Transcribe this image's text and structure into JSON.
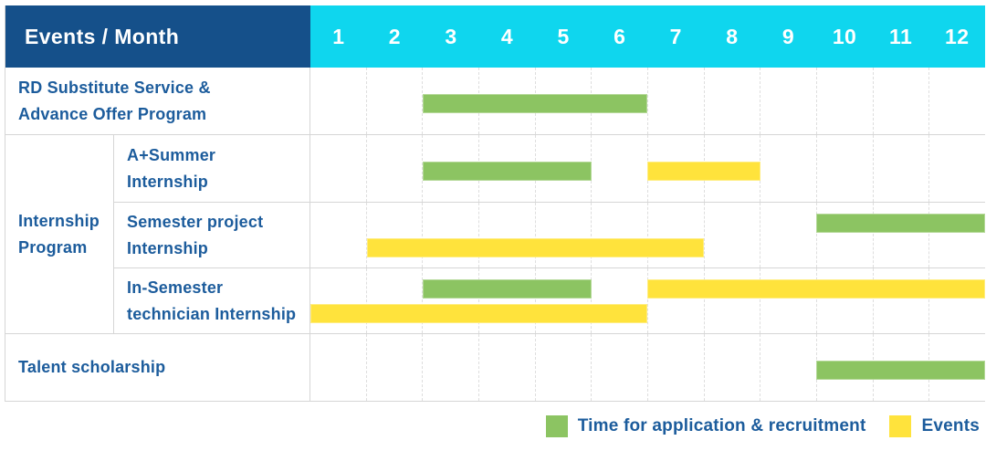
{
  "colors": {
    "navy": "#15508a",
    "cyan": "#0fd6ee",
    "green": "#8cc462",
    "yellow": "#ffe33c",
    "text": "#1c5c9c",
    "grid": "#d6d6d6"
  },
  "header": {
    "label": "Events / Month",
    "months": [
      "1",
      "2",
      "3",
      "4",
      "5",
      "6",
      "7",
      "8",
      "9",
      "10",
      "11",
      "12"
    ]
  },
  "group_label": {
    "lines": [
      "Internship",
      "Program"
    ]
  },
  "rows": [
    {
      "lines": [
        "RD Substitute Service &",
        "Advance Offer Program"
      ],
      "lanes": [
        [
          {
            "c": "green",
            "s": 3,
            "e": 6
          }
        ]
      ]
    },
    {
      "lines": [
        "A+Summer",
        "Internship"
      ],
      "lanes": [
        [
          {
            "c": "green",
            "s": 3,
            "e": 5
          },
          {
            "c": "yellow",
            "s": 7,
            "e": 8
          }
        ]
      ]
    },
    {
      "lines": [
        "Semester project",
        "Internship"
      ],
      "lanes": [
        [
          {
            "c": "green",
            "s": 10,
            "e": 12
          }
        ],
        [
          {
            "c": "yellow",
            "s": 2,
            "e": 7
          }
        ]
      ]
    },
    {
      "lines": [
        "In-Semester",
        "technician Internship"
      ],
      "lanes": [
        [
          {
            "c": "green",
            "s": 3,
            "e": 5
          },
          {
            "c": "yellow",
            "s": 7,
            "e": 12
          }
        ],
        [
          {
            "c": "yellow",
            "s": 1,
            "e": 6
          }
        ]
      ]
    },
    {
      "lines": [
        "Talent scholarship"
      ],
      "lanes": [
        [
          {
            "c": "green",
            "s": 10,
            "e": 12
          }
        ]
      ]
    }
  ],
  "legend": [
    {
      "label": "Time for application & recruitment",
      "color": "green"
    },
    {
      "label": "Events",
      "color": "yellow"
    }
  ],
  "chart_data": {
    "type": "bar",
    "variant": "gantt",
    "title": "Events / Month",
    "x_axis": {
      "label": "Month",
      "ticks": [
        1,
        2,
        3,
        4,
        5,
        6,
        7,
        8,
        9,
        10,
        11,
        12
      ],
      "range": [
        1,
        12
      ]
    },
    "legend_entries": [
      {
        "name": "Time for application & recruitment",
        "color": "#8cc462"
      },
      {
        "name": "Events",
        "color": "#ffe33c"
      }
    ],
    "tasks": [
      {
        "row": "RD Substitute Service & Advance Offer Program",
        "group": null,
        "series": "Time for application & recruitment",
        "start_month": 3,
        "end_month": 6
      },
      {
        "row": "A+Summer Internship",
        "group": "Internship Program",
        "series": "Time for application & recruitment",
        "start_month": 3,
        "end_month": 5
      },
      {
        "row": "A+Summer Internship",
        "group": "Internship Program",
        "series": "Events",
        "start_month": 7,
        "end_month": 8
      },
      {
        "row": "Semester project Internship",
        "group": "Internship Program",
        "series": "Time for application & recruitment",
        "start_month": 10,
        "end_month": 12
      },
      {
        "row": "Semester project Internship",
        "group": "Internship Program",
        "series": "Events",
        "start_month": 2,
        "end_month": 7
      },
      {
        "row": "In-Semester technician Internship",
        "group": "Internship Program",
        "series": "Time for application & recruitment",
        "start_month": 3,
        "end_month": 5
      },
      {
        "row": "In-Semester technician Internship",
        "group": "Internship Program",
        "series": "Events",
        "start_month": 7,
        "end_month": 12
      },
      {
        "row": "In-Semester technician Internship",
        "group": "Internship Program",
        "series": "Events",
        "start_month": 1,
        "end_month": 6
      },
      {
        "row": "Talent scholarship",
        "group": null,
        "series": "Time for application & recruitment",
        "start_month": 10,
        "end_month": 12
      }
    ]
  }
}
